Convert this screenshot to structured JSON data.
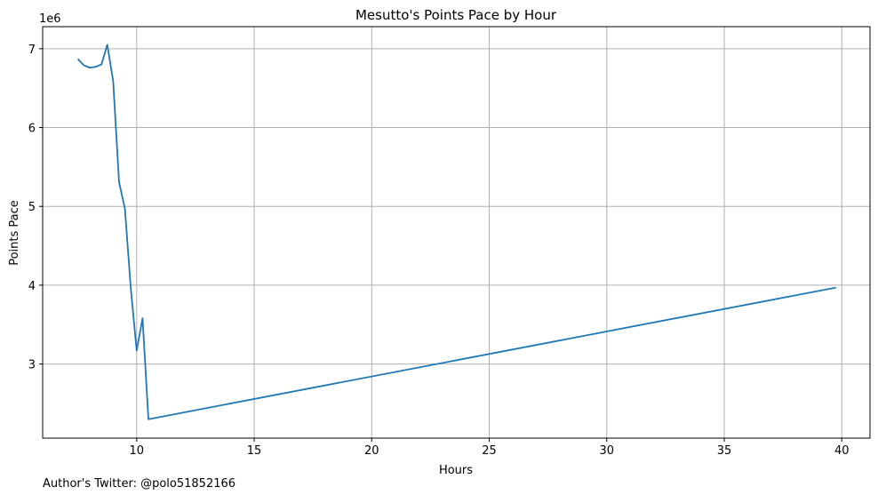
{
  "chart_data": {
    "type": "line",
    "title": "Mesutto's Points Pace by Hour",
    "xlabel": "Hours",
    "ylabel": "Points Pace",
    "y_multiplier_label": "1e6",
    "xlim": [
      6.0,
      41.2
    ],
    "ylim": [
      2.06,
      7.28
    ],
    "x_ticks": [
      10,
      15,
      20,
      25,
      30,
      35,
      40
    ],
    "y_ticks": [
      3,
      4,
      5,
      6,
      7
    ],
    "y_tick_labels": [
      "3",
      "4",
      "5",
      "6",
      "7"
    ],
    "grid": true,
    "series": [
      {
        "color": "#1f77b4",
        "x": [
          7.5,
          7.75,
          8.0,
          8.25,
          8.5,
          8.75,
          9.0,
          9.25,
          9.5,
          9.75,
          10.0,
          10.25,
          10.5,
          39.75
        ],
        "y": [
          6.87,
          6.79,
          6.76,
          6.77,
          6.8,
          7.05,
          6.59,
          5.31,
          4.97,
          3.96,
          3.17,
          3.58,
          2.3,
          3.97
        ]
      }
    ]
  },
  "footnote": "Author's Twitter: @polo51852166"
}
